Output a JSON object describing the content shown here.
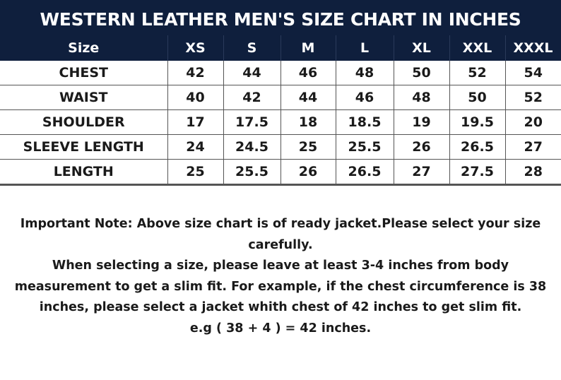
{
  "title": "WESTERN LEATHER MEN'S SIZE CHART IN INCHES",
  "columns": [
    "Size",
    "XS",
    "S",
    "M",
    "L",
    "XL",
    "XXL",
    "XXXL"
  ],
  "rows": [
    {
      "label": "CHEST",
      "values": [
        "42",
        "44",
        "46",
        "48",
        "50",
        "52",
        "54"
      ]
    },
    {
      "label": "WAIST",
      "values": [
        "40",
        "42",
        "44",
        "46",
        "48",
        "50",
        "52"
      ]
    },
    {
      "label": "SHOULDER",
      "values": [
        "17",
        "17.5",
        "18",
        "18.5",
        "19",
        "19.5",
        "20"
      ]
    },
    {
      "label": "SLEEVE LENGTH",
      "values": [
        "24",
        "24.5",
        "25",
        "25.5",
        "26",
        "26.5",
        "27"
      ]
    },
    {
      "label": "LENGTH",
      "values": [
        "25",
        "25.5",
        "26",
        "26.5",
        "27",
        "27.5",
        "28"
      ]
    }
  ],
  "note": {
    "line1": "Important Note: Above size chart is of ready jacket.Please select your size carefully.",
    "line2": "When selecting a size, please leave at least 3-4 inches from body measurement to get a slim fit. For example, if the chest circumference is 38 inches, please select a jacket whith chest of 42 inches to get slim fit.",
    "line3": "e.g ( 38 + 4 ) = 42 inches."
  },
  "colors": {
    "header_bg": "#0f1f3d",
    "header_text": "#ffffff"
  }
}
